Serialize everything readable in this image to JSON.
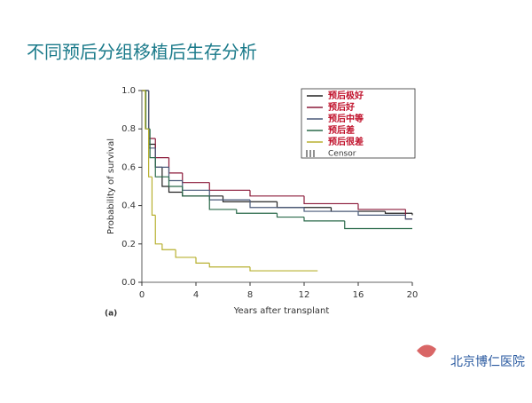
{
  "title": "不同预后分组移植后生存分析",
  "logo": "北京博仁医院",
  "chart_data": {
    "type": "step",
    "panel_label": "(a)",
    "x_label": "Years after transplant",
    "y_label": "Probability of survival",
    "xlim": [
      0,
      20
    ],
    "xticks": [
      0,
      4,
      8,
      12,
      16,
      20
    ],
    "ylim": [
      0,
      1
    ],
    "yticks": [
      {
        "value": 0,
        "label": "0.0"
      },
      0.2,
      0.4,
      0.6,
      0.8,
      {
        "value": 1,
        "label": "1.0"
      }
    ],
    "legend_position": "upper right",
    "legend_extra": "Censor",
    "series": [
      {
        "name": "预后极好",
        "color": "#222222",
        "x": [
          0,
          0.5,
          1,
          1.5,
          2,
          3,
          6,
          10,
          14,
          18,
          20
        ],
        "values": [
          1,
          0.72,
          0.6,
          0.5,
          0.47,
          0.45,
          0.42,
          0.39,
          0.37,
          0.36,
          0.35
        ]
      },
      {
        "name": "预后好",
        "color": "#8b1a3a",
        "x": [
          0,
          0.5,
          1,
          2,
          3,
          5,
          8,
          12,
          16,
          19.5,
          20
        ],
        "values": [
          1,
          0.75,
          0.65,
          0.57,
          0.52,
          0.48,
          0.45,
          0.41,
          0.38,
          0.33,
          0.33
        ]
      },
      {
        "name": "预后中等",
        "color": "#4a5a7a",
        "x": [
          0,
          0.5,
          1,
          2,
          3,
          5,
          8,
          12,
          16,
          19.5,
          20
        ],
        "values": [
          1,
          0.7,
          0.6,
          0.53,
          0.48,
          0.43,
          0.39,
          0.37,
          0.35,
          0.33,
          0.33
        ]
      },
      {
        "name": "预后差",
        "color": "#2a6a4a",
        "x": [
          0,
          0.3,
          0.6,
          1,
          2,
          3,
          5,
          7,
          10,
          12,
          15,
          20
        ],
        "values": [
          1,
          0.8,
          0.65,
          0.55,
          0.5,
          0.45,
          0.38,
          0.36,
          0.34,
          0.32,
          0.28,
          0.28
        ]
      },
      {
        "name": "预后很差",
        "color": "#b8b030",
        "x": [
          0,
          0.25,
          0.5,
          0.75,
          1,
          1.5,
          2.5,
          4,
          5,
          8,
          13
        ],
        "values": [
          1,
          0.8,
          0.55,
          0.35,
          0.2,
          0.17,
          0.13,
          0.1,
          0.08,
          0.06,
          0.06
        ]
      }
    ]
  }
}
